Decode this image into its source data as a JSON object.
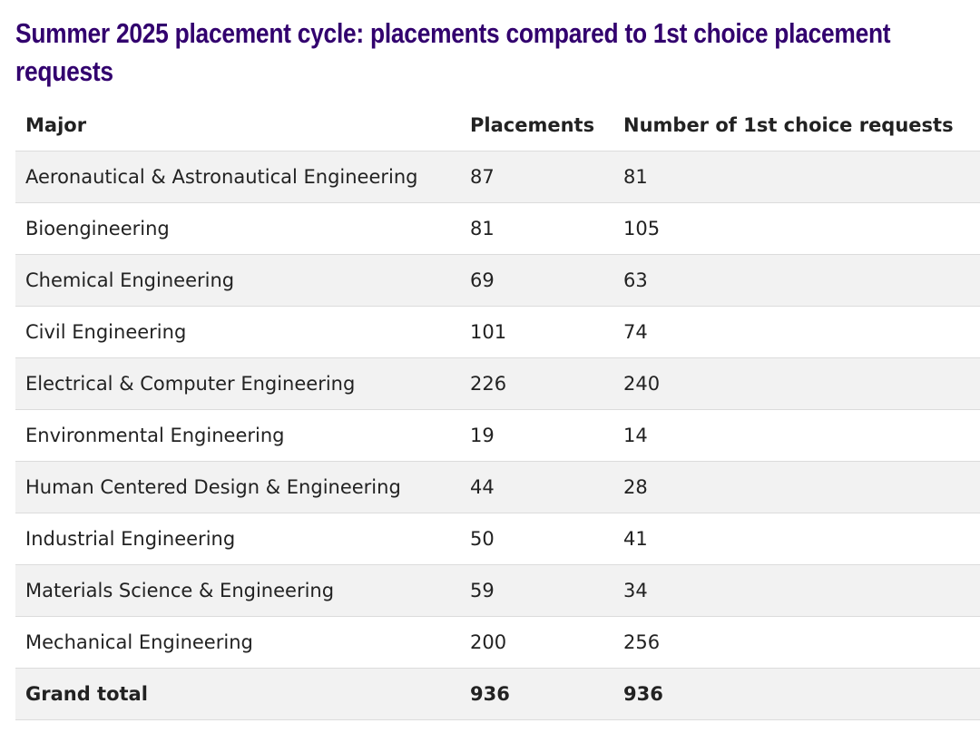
{
  "header": {
    "title": "Summer 2025 placement cycle: placements compared to 1st choice placement requests"
  },
  "table": {
    "columns": [
      "Major",
      "Placements",
      "Number of 1st choice requests"
    ],
    "rows": [
      [
        "Aeronautical & Astronautical Engineering",
        87,
        81
      ],
      [
        "Bioengineering",
        81,
        105
      ],
      [
        "Chemical Engineering",
        69,
        63
      ],
      [
        "Civil Engineering",
        101,
        74
      ],
      [
        "Electrical & Computer Engineering",
        226,
        240
      ],
      [
        "Environmental Engineering",
        19,
        14
      ],
      [
        "Human Centered Design & Engineering",
        44,
        28
      ],
      [
        "Industrial Engineering",
        50,
        41
      ],
      [
        "Materials Science & Engineering",
        59,
        34
      ],
      [
        "Mechanical Engineering",
        200,
        256
      ]
    ],
    "total": [
      "Grand total",
      936,
      936
    ]
  }
}
